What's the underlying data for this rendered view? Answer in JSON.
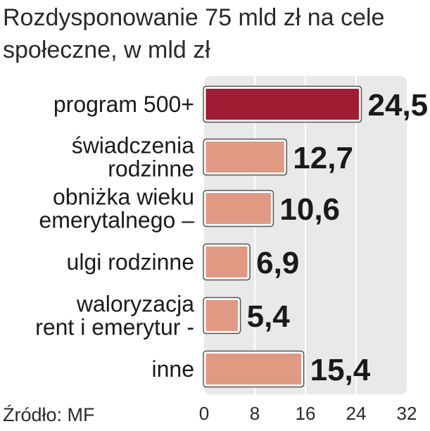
{
  "title": "Rozdysponowanie 75 mld zł na cele społeczne, w mld zł",
  "source": "Źródło: MF",
  "colors": {
    "highlight": "#a01c32",
    "bar": "#e09a84",
    "panel": "#e9e9e9",
    "grid": "#ffffff"
  },
  "chart_data": {
    "type": "bar",
    "orientation": "horizontal",
    "categories": [
      [
        "program 500+"
      ],
      [
        "świadczenia",
        "rodzinne"
      ],
      [
        "obniżka wieku",
        "emerytalnego –"
      ],
      [
        "ulgi rodzinne"
      ],
      [
        "waloryzacja",
        "rent i emerytur -"
      ],
      [
        "inne"
      ]
    ],
    "values": [
      24.5,
      12.7,
      10.6,
      6.9,
      5.4,
      15.4
    ],
    "value_labels": [
      "24,5",
      "12,7",
      "10,6",
      "6,9",
      "5,4",
      "15,4"
    ],
    "highlight_index": 0,
    "xlim": [
      0,
      32
    ],
    "xticks": [
      0,
      8,
      16,
      24,
      32
    ],
    "grid": true,
    "title": "Rozdysponowanie 75 mld zł na cele społeczne, w mld zł",
    "xlabel": "",
    "ylabel": ""
  }
}
